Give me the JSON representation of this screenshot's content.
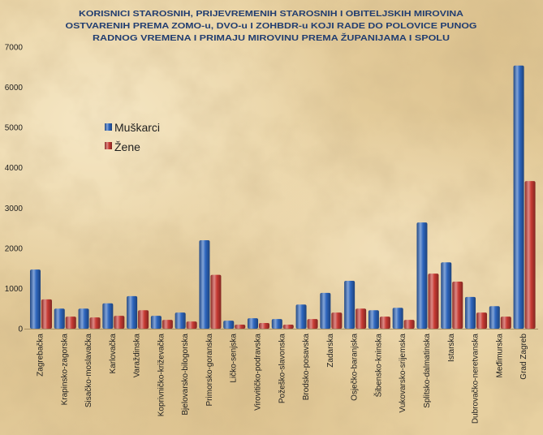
{
  "chart_data": {
    "type": "bar",
    "title": [
      "KORISNICI STAROSNIH, PRIJEVREMENIH STAROSNIH I OBITELJSKIH MIROVINA",
      "OSTVARENIH PREMA ZOMO-u, DVO-u I ZOHBDR-u KOJI RADE DO POLOVICE PUNOG",
      "RADNOG VREMENA I PRIMAJU MIROVINU PREMA ŽUPANIJAMA I SPOLU"
    ],
    "xlabel": "",
    "ylabel": "",
    "categories": [
      "Zagrebačka",
      "Krapinsko-zagorska",
      "Sisačko-moslavačka",
      "Karlovačka",
      "Varaždinska",
      "Koprivničko-križevačka",
      "Bjelovarsko-bilogorska",
      "Primorsko-goranska",
      "Ličko-senjska",
      "Virovitičko-podravska",
      "Požeško-slavonska",
      "Brodsko-posavska",
      "Zadarska",
      "Osječko-baranjska",
      "Šibensko-kninska",
      "Vukovarsko-srijemska",
      "Splitsko-dalmatinska",
      "Istarska",
      "Dubrovačko-neretvanska",
      "Međimurska",
      "Grad Zagreb"
    ],
    "series": [
      {
        "name": "Muškarci",
        "color": "#2d65bd",
        "values": [
          1470,
          500,
          500,
          630,
          810,
          320,
          400,
          2200,
          200,
          260,
          240,
          600,
          890,
          1190,
          460,
          520,
          2640,
          1650,
          790,
          560,
          6540
        ]
      },
      {
        "name": "Žene",
        "color": "#c73a33",
        "values": [
          730,
          300,
          280,
          320,
          460,
          220,
          180,
          1340,
          100,
          140,
          100,
          240,
          400,
          500,
          300,
          220,
          1370,
          1170,
          400,
          300,
          3670
        ]
      }
    ],
    "ylim": [
      0,
      7000
    ],
    "yticks": [
      0,
      1000,
      2000,
      3000,
      4000,
      5000,
      6000,
      7000
    ],
    "grid": false,
    "legend": "upper-left"
  }
}
